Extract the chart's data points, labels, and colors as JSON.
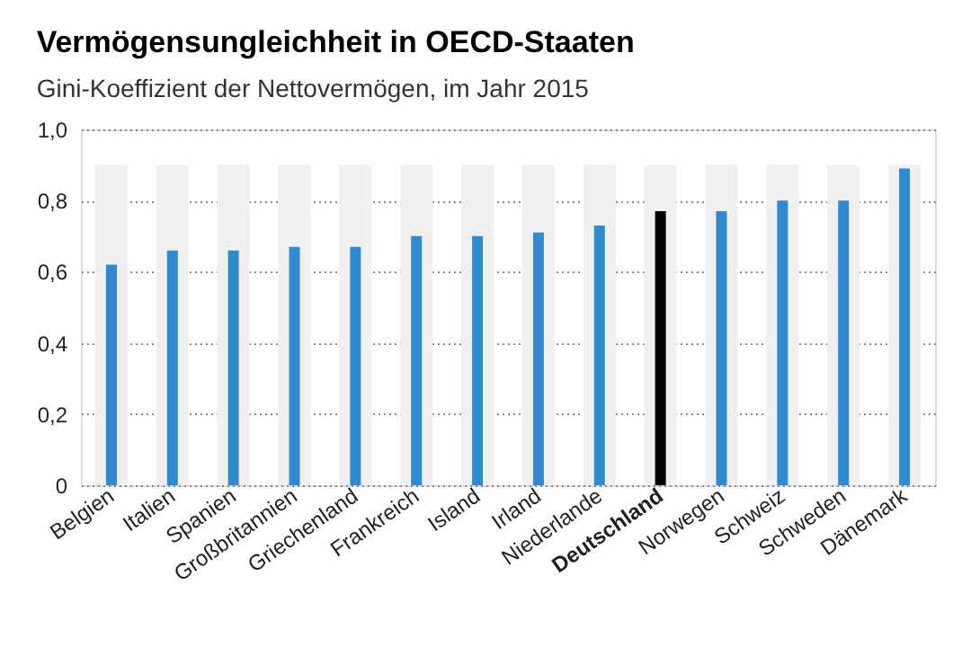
{
  "chart_data": {
    "type": "bar",
    "title": "Vermögensungleichheit in OECD-Staaten",
    "subtitle": "Gini-Koeffizient der Nettovermögen, im Jahr 2015",
    "categories": [
      "Belgien",
      "Italien",
      "Spanien",
      "Großbritannien",
      "Griechenland",
      "Frankreich",
      "Island",
      "Irland",
      "Niederlande",
      "Deutschland",
      "Norwegen",
      "Schweiz",
      "Schweden",
      "Dänemark"
    ],
    "series": [
      {
        "color": "#f0f0f0",
        "values": [
          0.9,
          0.9,
          0.9,
          0.9,
          0.9,
          0.9,
          0.9,
          0.9,
          0.9,
          0.9,
          0.9,
          0.9,
          0.9,
          0.9
        ]
      },
      {
        "color": "#2f8ad0",
        "colors": [
          "#2f8ad0",
          "#2f8ad0",
          "#2f8ad0",
          "#2f8ad0",
          "#2f8ad0",
          "#2f8ad0",
          "#2f8ad0",
          "#2f8ad0",
          "#2f8ad0",
          "#000000",
          "#2f8ad0",
          "#2f8ad0",
          "#2f8ad0",
          "#2f8ad0"
        ],
        "values": [
          0.62,
          0.66,
          0.66,
          0.67,
          0.67,
          0.7,
          0.7,
          0.71,
          0.73,
          0.77,
          0.77,
          0.8,
          0.8,
          0.89
        ]
      }
    ],
    "ylim": [
      0,
      1.0
    ],
    "yticks": [
      {
        "value": 0,
        "label": "0"
      },
      {
        "value": 0.2,
        "label": "0,2"
      },
      {
        "value": 0.4,
        "label": "0,4"
      },
      {
        "value": 0.6,
        "label": "0,6"
      },
      {
        "value": 0.8,
        "label": "0,8"
      },
      {
        "value": 1.0,
        "label": "1,0"
      }
    ],
    "grid": "y"
  }
}
